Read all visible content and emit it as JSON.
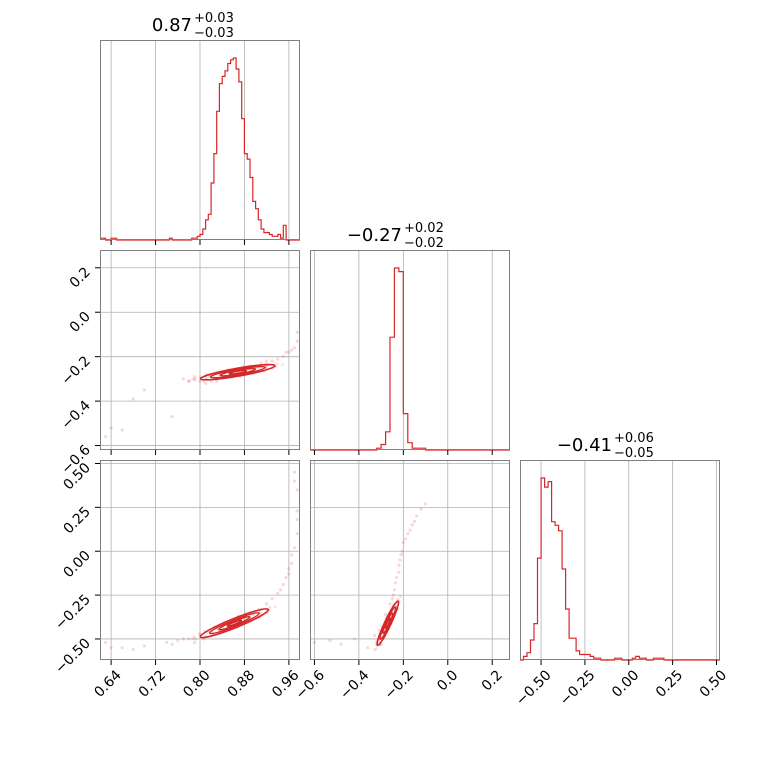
{
  "colors": {
    "series": "#d62728",
    "grid": "#b0b0b0",
    "frame": "#808080"
  },
  "chart_data": {
    "type": "corner",
    "parameters": [
      {
        "range": [
          0.62,
          0.98
        ],
        "ticks": [
          0.64,
          0.72,
          0.8,
          0.88,
          0.96
        ],
        "tick_labels": [
          "0.64",
          "0.72",
          "0.80",
          "0.88",
          "0.96"
        ],
        "title": {
          "median": "0.87",
          "plus": "+0.03",
          "minus": "−0.03"
        },
        "hist": {
          "bins": [
            0.62,
            0.625,
            0.63,
            0.635,
            0.64,
            0.645,
            0.65,
            0.655,
            0.66,
            0.665,
            0.67,
            0.675,
            0.68,
            0.685,
            0.69,
            0.695,
            0.7,
            0.705,
            0.71,
            0.715,
            0.72,
            0.725,
            0.73,
            0.735,
            0.74,
            0.745,
            0.75,
            0.755,
            0.76,
            0.765,
            0.77,
            0.775,
            0.78,
            0.785,
            0.79,
            0.795,
            0.8,
            0.805,
            0.81,
            0.815,
            0.82,
            0.825,
            0.83,
            0.835,
            0.84,
            0.845,
            0.85,
            0.855,
            0.86,
            0.865,
            0.87,
            0.875,
            0.88,
            0.885,
            0.89,
            0.895,
            0.9,
            0.905,
            0.91,
            0.915,
            0.92,
            0.925,
            0.93,
            0.935,
            0.94,
            0.945,
            0.95,
            0.955,
            0.96,
            0.965,
            0.97,
            0.975,
            0.98
          ],
          "counts": [
            1,
            1,
            0,
            0,
            1,
            1,
            0,
            0,
            0,
            0,
            0,
            0,
            0,
            0,
            0,
            0,
            0,
            0,
            0,
            0,
            0,
            0,
            0,
            0,
            0,
            1,
            0,
            0,
            0,
            0,
            0,
            0,
            0,
            1,
            1,
            2,
            3,
            6,
            11,
            14,
            31,
            47,
            70,
            85,
            89,
            92,
            96,
            98,
            99,
            93,
            86,
            66,
            47,
            44,
            34,
            21,
            17,
            11,
            6,
            4,
            4,
            3,
            2,
            2,
            3,
            1,
            8,
            0,
            0,
            0,
            0,
            0
          ]
        }
      },
      {
        "range": [
          -0.62,
          0.28
        ],
        "ticks": [
          -0.6,
          -0.4,
          -0.2,
          0.0,
          0.2
        ],
        "tick_labels": [
          "−0.6",
          "−0.4",
          "−0.2",
          "0.0",
          "0.2"
        ],
        "title": {
          "median": "−0.27",
          "plus": "+0.02",
          "minus": "−0.02"
        },
        "hist": {
          "bins": [
            -0.62,
            -0.6,
            -0.58,
            -0.56,
            -0.54,
            -0.52,
            -0.5,
            -0.48,
            -0.46,
            -0.44,
            -0.42,
            -0.4,
            -0.38,
            -0.36,
            -0.34,
            -0.32,
            -0.3,
            -0.28,
            -0.26,
            -0.24,
            -0.22,
            -0.2,
            -0.18,
            -0.16,
            -0.14,
            -0.12,
            -0.1,
            -0.08,
            -0.06,
            -0.04,
            -0.02,
            0.0,
            0.02,
            0.04,
            0.06,
            0.08,
            0.1,
            0.12,
            0.14,
            0.16,
            0.18,
            0.2,
            0.22,
            0.24,
            0.26,
            0.28
          ],
          "counts": [
            0,
            0,
            0,
            0,
            0,
            0,
            0,
            0,
            0,
            0,
            0,
            0,
            0,
            0,
            0,
            1,
            3,
            10,
            62,
            100,
            98,
            20,
            4,
            1,
            1,
            1,
            0,
            0,
            0,
            0,
            0,
            0,
            0,
            0,
            0,
            0,
            0,
            0,
            0,
            0,
            0,
            0,
            0,
            0,
            0
          ]
        }
      },
      {
        "range": [
          -0.62,
          0.52
        ],
        "ticks": [
          -0.5,
          -0.25,
          0.0,
          0.25,
          0.5
        ],
        "tick_labels": [
          "−0.50",
          "−0.25",
          "0.00",
          "0.25",
          "0.50"
        ],
        "title": {
          "median": "−0.41",
          "plus": "+0.06",
          "minus": "−0.05"
        },
        "hist": {
          "bins": [
            -0.62,
            -0.6,
            -0.58,
            -0.56,
            -0.54,
            -0.52,
            -0.5,
            -0.48,
            -0.46,
            -0.44,
            -0.42,
            -0.4,
            -0.38,
            -0.36,
            -0.34,
            -0.32,
            -0.3,
            -0.28,
            -0.26,
            -0.24,
            -0.22,
            -0.2,
            -0.18,
            -0.16,
            -0.14,
            -0.12,
            -0.1,
            -0.08,
            -0.06,
            -0.04,
            -0.02,
            0.0,
            0.02,
            0.04,
            0.06,
            0.08,
            0.1,
            0.12,
            0.14,
            0.16,
            0.18,
            0.2,
            0.22,
            0.24,
            0.26,
            0.28,
            0.3,
            0.32,
            0.34,
            0.36,
            0.38,
            0.4,
            0.42,
            0.44,
            0.46,
            0.48,
            0.5,
            0.52
          ],
          "counts": [
            0,
            2,
            4,
            11,
            20,
            56,
            100,
            95,
            98,
            76,
            74,
            71,
            50,
            28,
            12,
            12,
            5,
            3,
            3,
            3,
            2,
            1,
            1,
            0,
            0,
            0,
            0,
            1,
            1,
            0,
            0,
            0,
            1,
            2,
            1,
            1,
            0,
            0,
            1,
            1,
            1,
            0,
            0,
            0,
            0,
            0,
            0,
            0,
            0,
            0,
            0,
            0,
            0,
            0,
            0,
            0,
            0
          ]
        }
      }
    ],
    "pairs": [
      {
        "x_param": 0,
        "y_param": 1,
        "contours": [
          {
            "cx": 0.868,
            "cy": -0.27,
            "rx": 0.068,
            "ry": 0.018,
            "angle_deg": -10
          },
          {
            "cx": 0.868,
            "cy": -0.27,
            "rx": 0.05,
            "ry": 0.013,
            "angle_deg": -10
          },
          {
            "cx": 0.868,
            "cy": -0.27,
            "rx": 0.032,
            "ry": 0.009,
            "angle_deg": -10
          },
          {
            "cx": 0.868,
            "cy": -0.27,
            "rx": 0.016,
            "ry": 0.005,
            "angle_deg": -10
          }
        ],
        "points": [
          [
            0.68,
            -0.39
          ],
          [
            0.75,
            -0.47
          ],
          [
            0.77,
            -0.3
          ],
          [
            0.78,
            -0.31
          ],
          [
            0.79,
            -0.3
          ],
          [
            0.8,
            -0.31
          ],
          [
            0.81,
            -0.29
          ],
          [
            0.81,
            -0.32
          ],
          [
            0.82,
            -0.31
          ],
          [
            0.82,
            -0.28
          ],
          [
            0.83,
            -0.31
          ],
          [
            0.9,
            -0.25
          ],
          [
            0.92,
            -0.24
          ],
          [
            0.93,
            -0.22
          ],
          [
            0.94,
            -0.21
          ],
          [
            0.95,
            -0.2
          ],
          [
            0.96,
            -0.18
          ],
          [
            0.965,
            -0.17
          ],
          [
            0.97,
            -0.16
          ],
          [
            0.975,
            -0.13
          ],
          [
            0.975,
            -0.09
          ],
          [
            0.63,
            -0.56
          ],
          [
            0.64,
            -0.52
          ],
          [
            0.66,
            -0.53
          ],
          [
            0.7,
            -0.35
          ],
          [
            0.91,
            -0.23
          ],
          [
            0.92,
            -0.22
          ],
          [
            0.955,
            -0.18
          ],
          [
            0.78,
            -0.31
          ],
          [
            0.79,
            -0.29
          ]
        ]
      },
      {
        "x_param": 0,
        "y_param": 2,
        "contours": [
          {
            "cx": 0.862,
            "cy": -0.41,
            "rx": 0.066,
            "ry": 0.026,
            "angle_deg": -22
          },
          {
            "cx": 0.862,
            "cy": -0.41,
            "rx": 0.048,
            "ry": 0.018,
            "angle_deg": -22
          },
          {
            "cx": 0.862,
            "cy": -0.41,
            "rx": 0.03,
            "ry": 0.012,
            "angle_deg": -22
          },
          {
            "cx": 0.862,
            "cy": -0.41,
            "rx": 0.014,
            "ry": 0.006,
            "angle_deg": -22
          }
        ],
        "points": [
          [
            0.66,
            -0.55
          ],
          [
            0.7,
            -0.54
          ],
          [
            0.74,
            -0.52
          ],
          [
            0.75,
            -0.53
          ],
          [
            0.76,
            -0.51
          ],
          [
            0.77,
            -0.5
          ],
          [
            0.78,
            -0.5
          ],
          [
            0.79,
            -0.49
          ],
          [
            0.79,
            -0.52
          ],
          [
            0.8,
            -0.47
          ],
          [
            0.92,
            -0.3
          ],
          [
            0.93,
            -0.27
          ],
          [
            0.94,
            -0.24
          ],
          [
            0.95,
            -0.19
          ],
          [
            0.96,
            -0.13
          ],
          [
            0.965,
            -0.07
          ],
          [
            0.97,
            0.02
          ],
          [
            0.975,
            0.1
          ],
          [
            0.975,
            0.23
          ],
          [
            0.97,
            0.4
          ],
          [
            0.97,
            0.45
          ],
          [
            0.975,
            0.35
          ],
          [
            0.975,
            0.18
          ],
          [
            0.965,
            -0.02
          ],
          [
            0.63,
            -0.52
          ],
          [
            0.64,
            -0.55
          ],
          [
            0.68,
            -0.56
          ],
          [
            0.955,
            -0.15
          ],
          [
            0.945,
            -0.22
          ],
          [
            0.96,
            -0.1
          ]
        ]
      },
      {
        "x_param": 1,
        "y_param": 2,
        "contours": [
          {
            "cx": -0.27,
            "cy": -0.41,
            "rx": 0.11,
            "ry": 0.018,
            "angle_deg": -65
          },
          {
            "cx": -0.27,
            "cy": -0.41,
            "rx": 0.08,
            "ry": 0.013,
            "angle_deg": -65
          },
          {
            "cx": -0.27,
            "cy": -0.41,
            "rx": 0.05,
            "ry": 0.009,
            "angle_deg": -65
          },
          {
            "cx": -0.27,
            "cy": -0.41,
            "rx": 0.025,
            "ry": 0.005,
            "angle_deg": -65
          }
        ],
        "points": [
          [
            -0.53,
            -0.51
          ],
          [
            -0.48,
            -0.53
          ],
          [
            -0.42,
            -0.5
          ],
          [
            -0.36,
            -0.55
          ],
          [
            -0.32,
            -0.52
          ],
          [
            -0.31,
            -0.45
          ],
          [
            -0.3,
            -0.53
          ],
          [
            -0.25,
            -0.27
          ],
          [
            -0.24,
            -0.22
          ],
          [
            -0.23,
            -0.15
          ],
          [
            -0.22,
            -0.08
          ],
          [
            -0.21,
            -0.02
          ],
          [
            -0.2,
            0.05
          ],
          [
            -0.18,
            0.1
          ],
          [
            -0.16,
            0.15
          ],
          [
            -0.14,
            0.2
          ],
          [
            -0.12,
            0.24
          ],
          [
            -0.1,
            0.27
          ],
          [
            -0.26,
            -0.3
          ],
          [
            -0.245,
            -0.25
          ],
          [
            -0.235,
            -0.18
          ],
          [
            -0.22,
            -0.12
          ],
          [
            -0.205,
            0.0
          ],
          [
            -0.19,
            0.07
          ],
          [
            -0.17,
            0.12
          ],
          [
            -0.15,
            0.17
          ],
          [
            -0.6,
            -0.52
          ],
          [
            -0.33,
            -0.48
          ],
          [
            -0.28,
            -0.36
          ],
          [
            -0.215,
            -0.05
          ]
        ]
      }
    ]
  }
}
